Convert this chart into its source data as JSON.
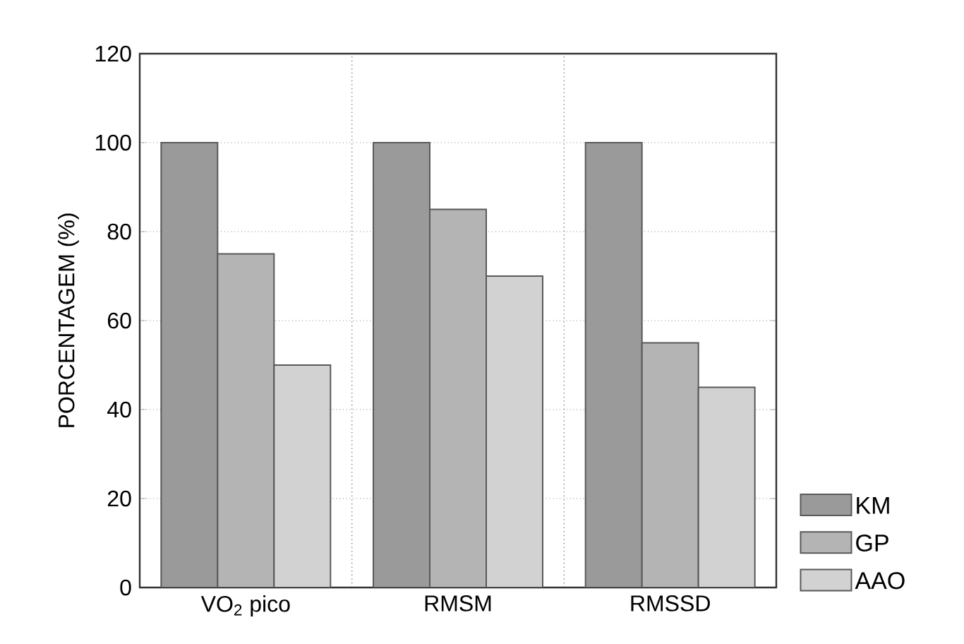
{
  "chart_data": {
    "type": "bar",
    "ylabel": "PORCENTAGEM (%)",
    "categories": [
      "VO$_{2}$ pico",
      "RMSM",
      "RMSSD"
    ],
    "series": [
      {
        "name": "KM",
        "color": "#9a9a9a",
        "values": [
          100,
          100,
          100
        ]
      },
      {
        "name": "GP",
        "color": "#b4b4b4",
        "values": [
          75,
          85,
          55
        ]
      },
      {
        "name": "AAO",
        "color": "#d2d2d2",
        "values": [
          50,
          70,
          45
        ]
      }
    ],
    "ylim": [
      0,
      120
    ],
    "yticks": [
      0,
      20,
      40,
      60,
      80,
      100,
      120
    ],
    "grid": true,
    "legend": "bottom right"
  }
}
